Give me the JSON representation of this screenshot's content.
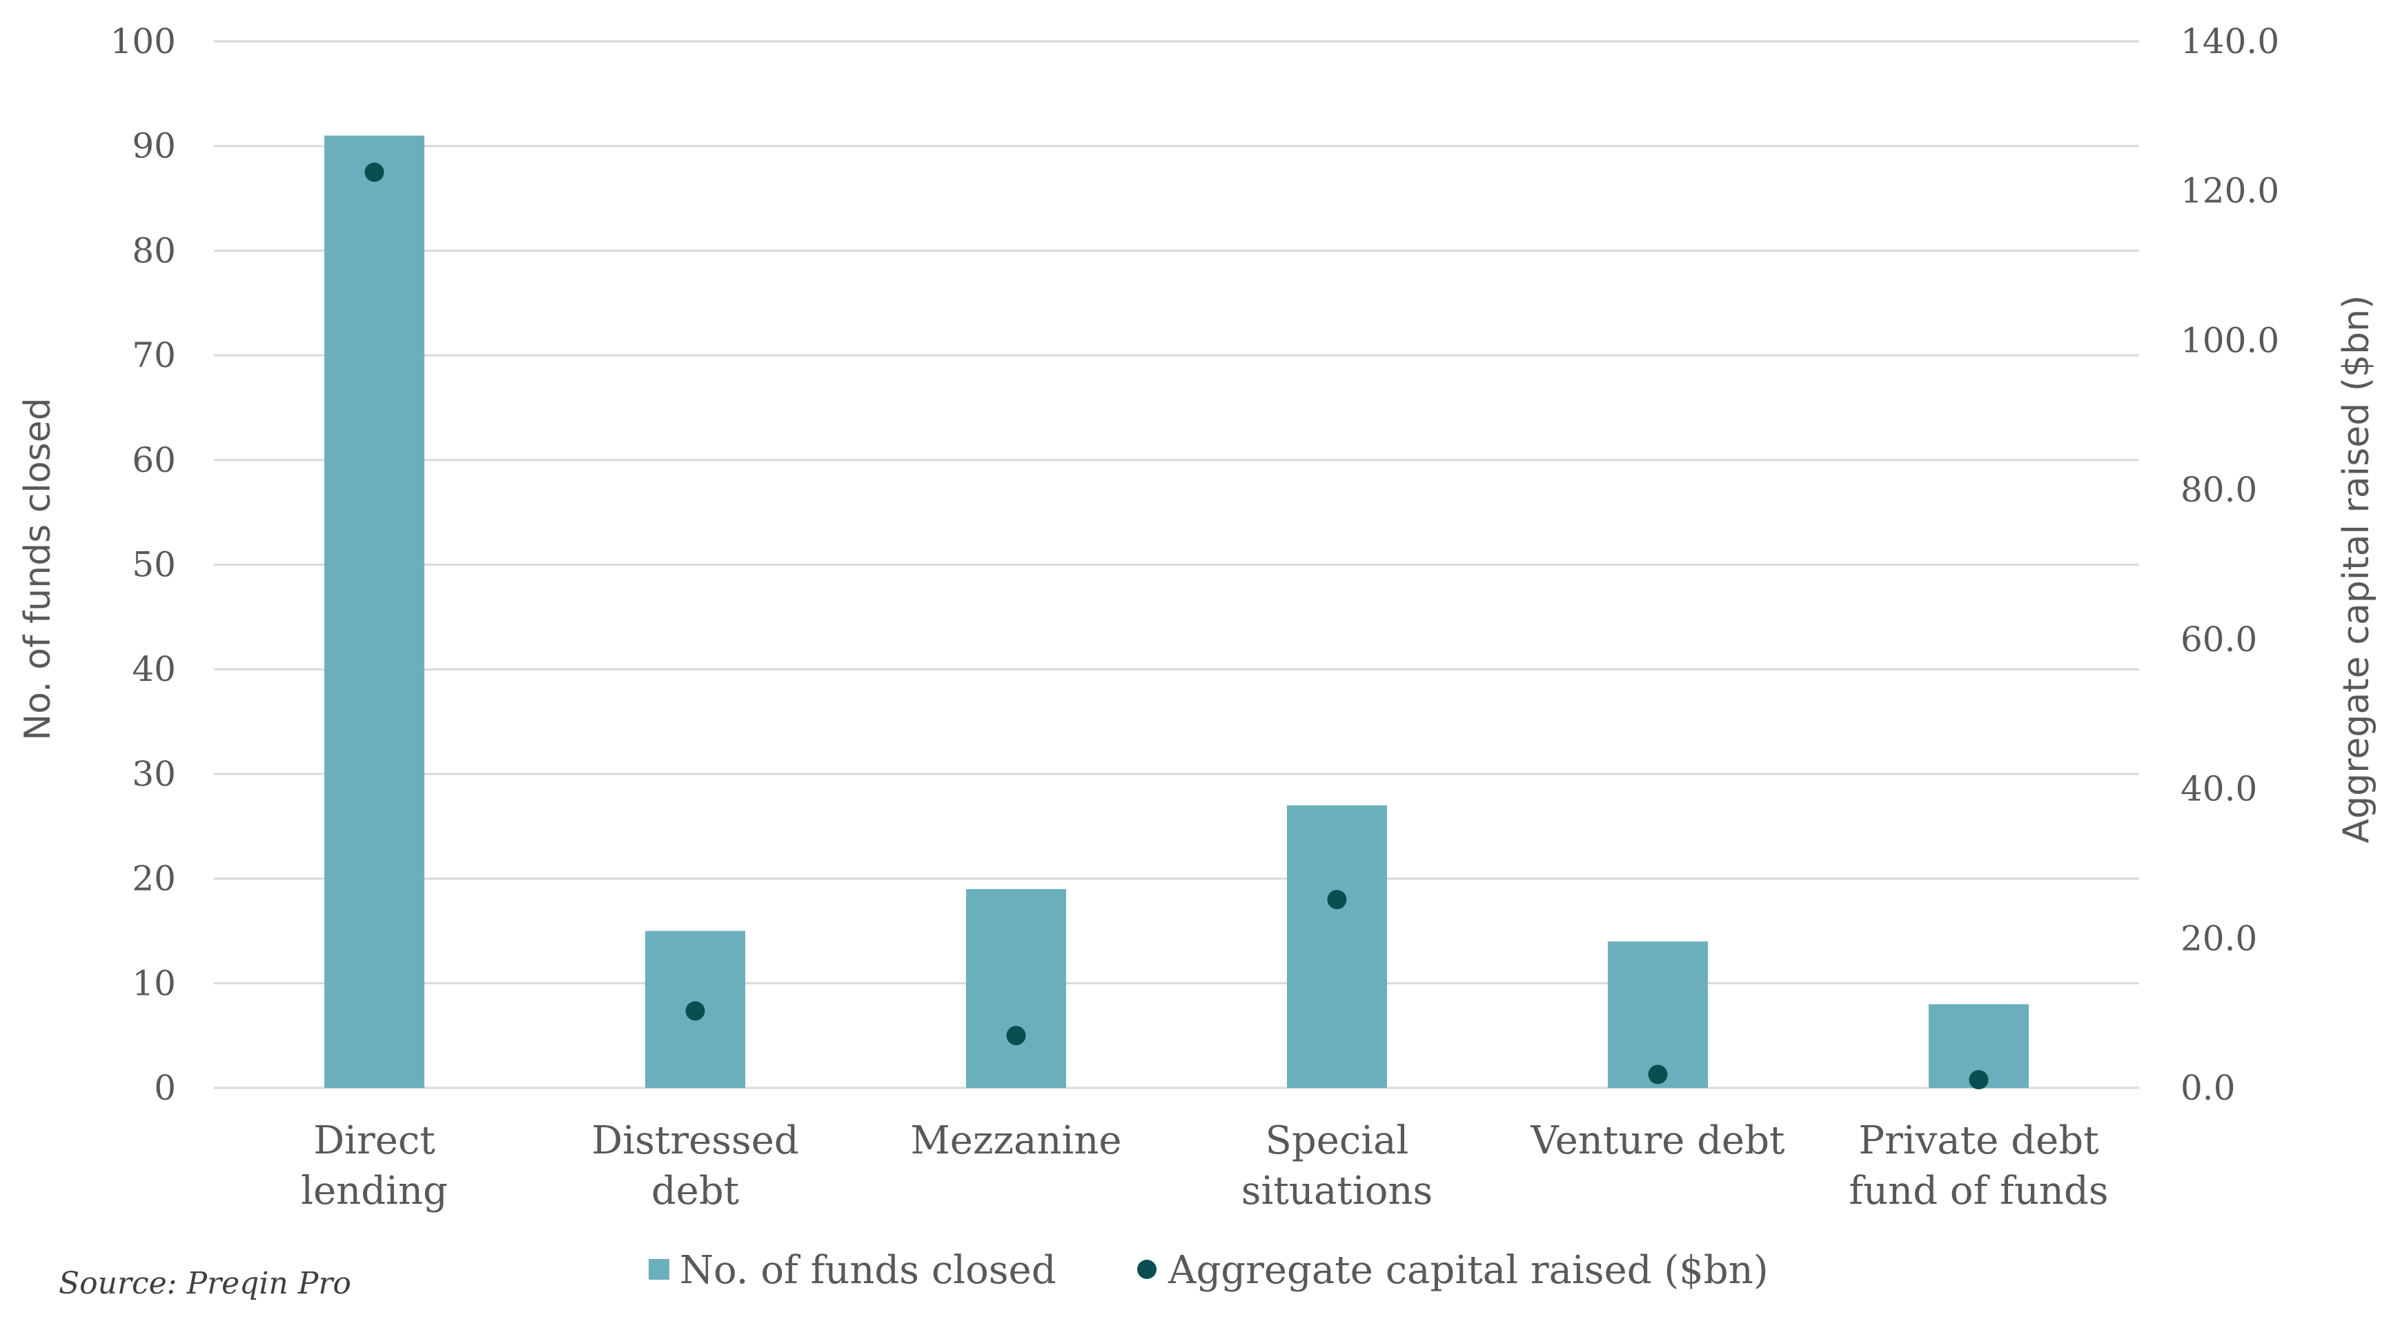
{
  "chart_data": {
    "type": "bar",
    "categories": [
      [
        "Direct",
        "lending"
      ],
      [
        "Distressed",
        "debt"
      ],
      [
        "Mezzanine"
      ],
      [
        "Special",
        "situations"
      ],
      [
        "Venture debt"
      ],
      [
        "Private debt",
        "fund of funds"
      ]
    ],
    "series": [
      {
        "name": "No. of funds closed",
        "type": "bar",
        "axis": "left",
        "values": [
          91,
          15,
          19,
          27,
          14,
          8
        ]
      },
      {
        "name": "Aggregate capital raised ($bn)",
        "type": "scatter",
        "axis": "right",
        "values": [
          122.5,
          10.3,
          7.0,
          25.2,
          1.8,
          1.1
        ]
      }
    ],
    "y_left": {
      "label": "No. of funds closed",
      "ylim": [
        0,
        100
      ],
      "ticks": [
        "0",
        "10",
        "20",
        "30",
        "40",
        "50",
        "60",
        "70",
        "80",
        "90",
        "100"
      ]
    },
    "y_right": {
      "label": "Aggregate capital raised ($bn)",
      "ylim": [
        0,
        140
      ],
      "ticks": [
        "0.0",
        "20.0",
        "40.0",
        "60.0",
        "80.0",
        "100.0",
        "120.0",
        "140.0"
      ]
    },
    "legend_position": "bottom",
    "grid": true,
    "colors": {
      "bar": "#6cafbc",
      "dot": "#0b4e52",
      "grid": "#d9d9d9",
      "text": "#595959"
    },
    "source": "Source: Preqin Pro"
  }
}
